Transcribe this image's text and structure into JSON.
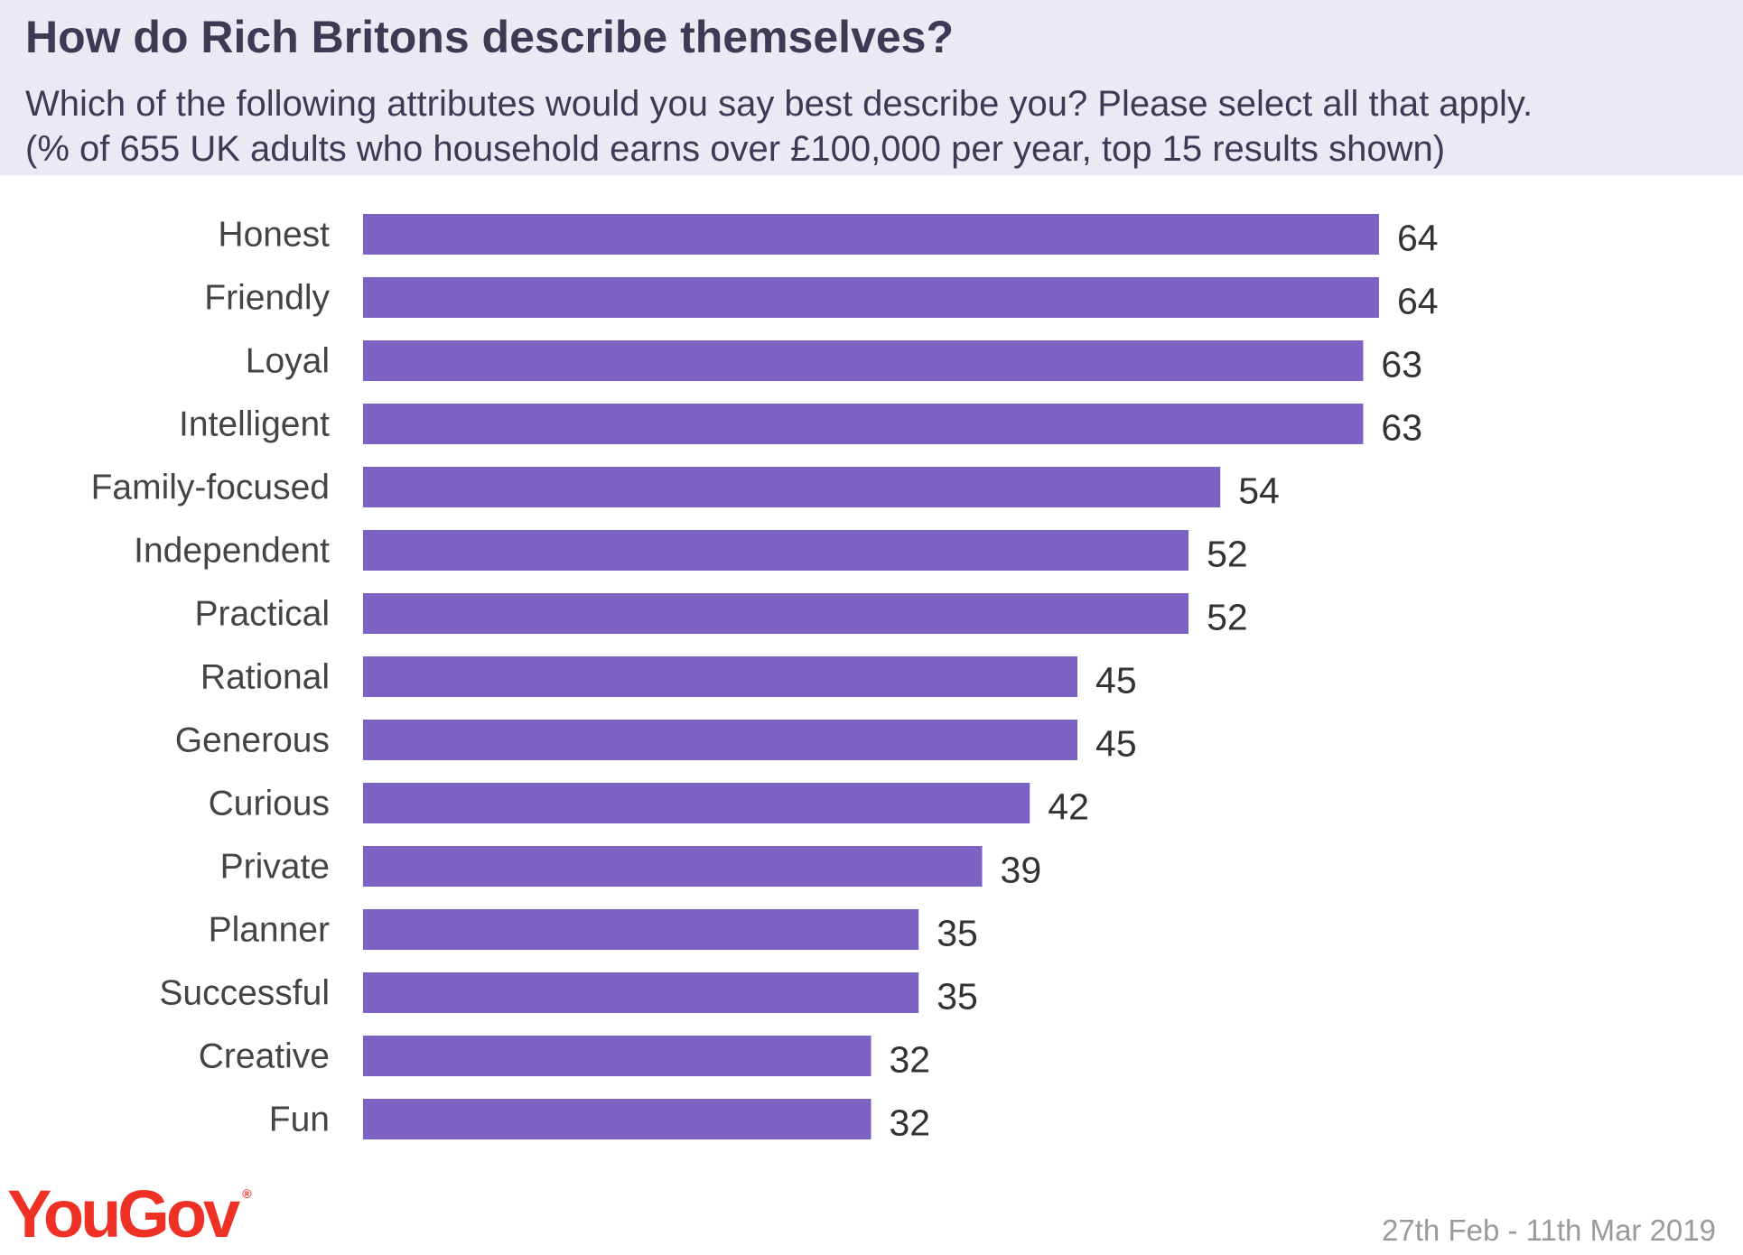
{
  "header": {
    "title": "How do Rich Britons describe themselves?",
    "subtitle_line1": "Which of the following attributes would you say best describe you? Please select all that apply.",
    "subtitle_line2": "(% of 655 UK adults who household earns over £100,000 per year, top 15 results shown)"
  },
  "colors": {
    "bar": "#7c63c3",
    "header_bg": "#ece9f4",
    "logo": "#ee3124"
  },
  "chart_data": {
    "type": "bar",
    "orientation": "horizontal",
    "categories": [
      "Honest",
      "Friendly",
      "Loyal",
      "Intelligent",
      "Family-focused",
      "Independent",
      "Practical",
      "Rational",
      "Generous",
      "Curious",
      "Private",
      "Planner",
      "Successful",
      "Creative",
      "Fun"
    ],
    "values": [
      64,
      64,
      63,
      63,
      54,
      52,
      52,
      45,
      45,
      42,
      39,
      35,
      35,
      32,
      32
    ],
    "value_labels": [
      "64",
      "64",
      "63",
      "63",
      "54",
      "52",
      "52",
      "45",
      "45",
      "42",
      "39",
      "35",
      "35",
      "32",
      "32"
    ],
    "xlim": [
      0,
      64
    ],
    "grid": false,
    "legend": "none"
  },
  "footer": {
    "logo_text": "YouGov",
    "date_range": "27th Feb - 11th Mar 2019"
  }
}
